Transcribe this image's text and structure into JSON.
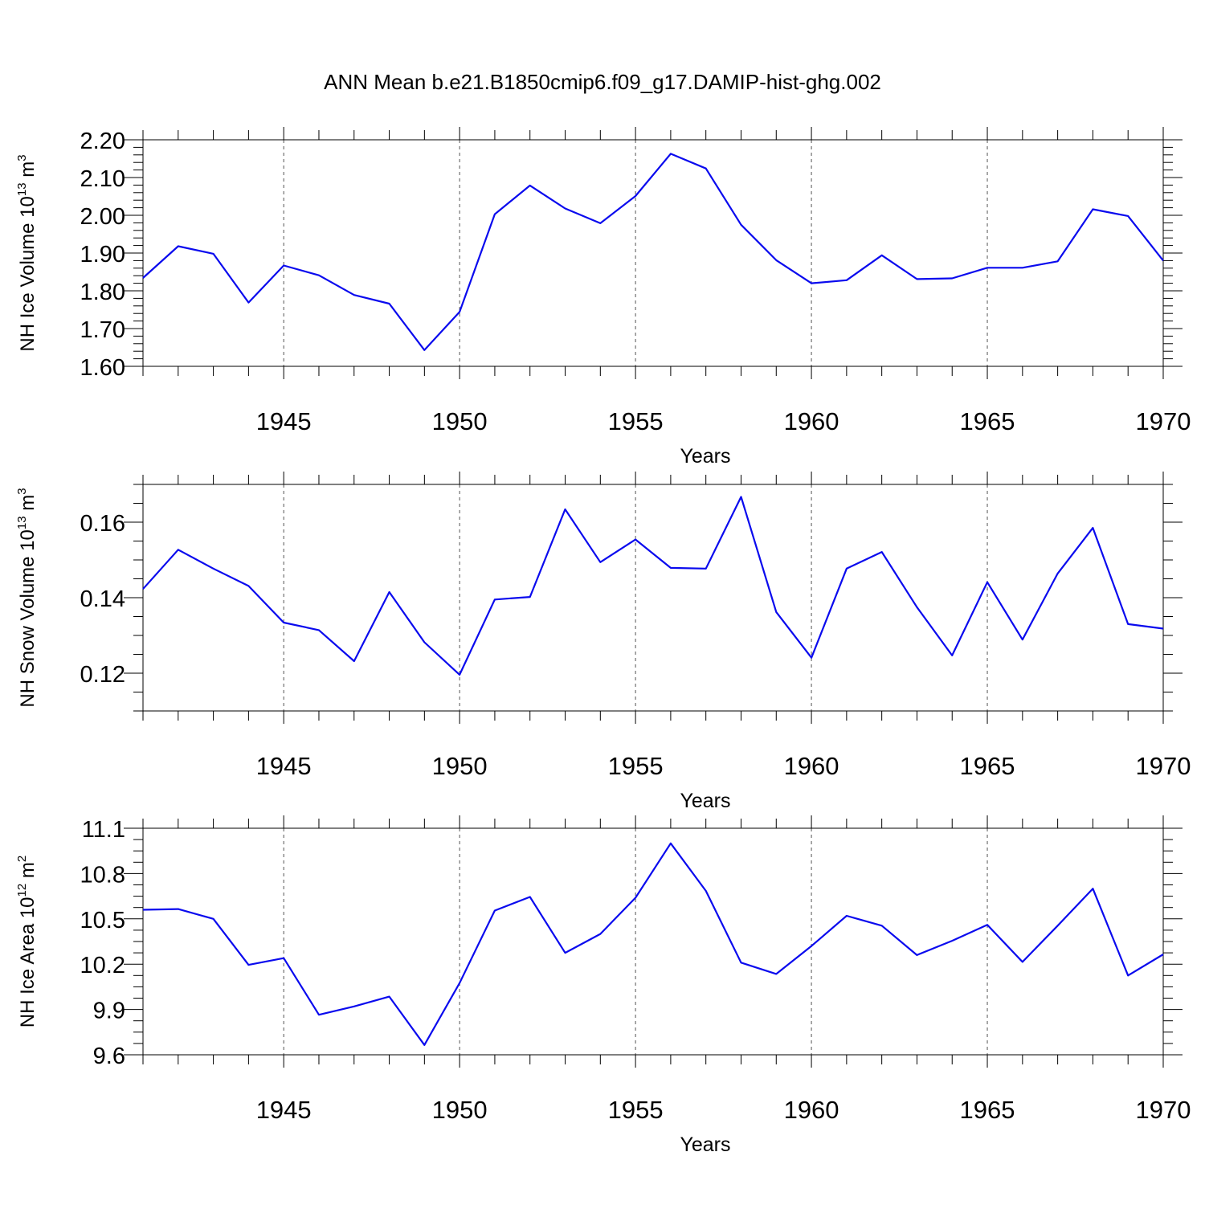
{
  "title": "ANN Mean b.e21.B1850cmip6.f09_g17.DAMIP-hist-ghg.002",
  "colors": {
    "line": "#0a0aee",
    "axis": "#000000",
    "grid": "#555555"
  },
  "chart_data": [
    {
      "type": "line",
      "ylabel": "NH Ice Volume 10",
      "ylabel_exp": "13",
      "ylabel_unit": " m",
      "ylabel_unit_exp": "3",
      "xlabel": "Years",
      "xlim": [
        1941,
        1970
      ],
      "ylim": [
        1.6,
        2.2
      ],
      "yticks": [
        1.6,
        1.7,
        1.8,
        1.9,
        2.0,
        2.1,
        2.2
      ],
      "ytick_labels": [
        "1.60",
        "1.70",
        "1.80",
        "1.90",
        "2.00",
        "2.10",
        "2.20"
      ],
      "yminor_step": 0.02,
      "xticks": [
        1945,
        1950,
        1955,
        1960,
        1965,
        1970
      ],
      "xtick_labels": [
        "1945",
        "1950",
        "1955",
        "1960",
        "1965",
        "1970"
      ],
      "grid_x": true,
      "x": [
        1941,
        1942,
        1943,
        1944,
        1945,
        1946,
        1947,
        1948,
        1949,
        1950,
        1951,
        1952,
        1953,
        1954,
        1955,
        1956,
        1957,
        1958,
        1959,
        1960,
        1961,
        1962,
        1963,
        1964,
        1965,
        1966,
        1967,
        1968,
        1969,
        1970
      ],
      "values": [
        1.834,
        1.918,
        1.898,
        1.769,
        1.867,
        1.841,
        1.789,
        1.766,
        1.643,
        1.744,
        2.003,
        2.079,
        2.018,
        1.979,
        2.051,
        2.163,
        2.124,
        1.975,
        1.881,
        1.82,
        1.828,
        1.894,
        1.831,
        1.833,
        1.861,
        1.861,
        1.878,
        2.016,
        1.998,
        1.88
      ]
    },
    {
      "type": "line",
      "ylabel": "NH Snow Volume 10",
      "ylabel_exp": "13",
      "ylabel_unit": " m",
      "ylabel_unit_exp": "3",
      "xlabel": "Years",
      "xlim": [
        1941,
        1970
      ],
      "ylim": [
        0.11,
        0.17
      ],
      "yticks": [
        0.12,
        0.14,
        0.16
      ],
      "ytick_labels": [
        "0.12",
        "0.14",
        "0.16"
      ],
      "yminor_step": 0.005,
      "xticks": [
        1945,
        1950,
        1955,
        1960,
        1965,
        1970
      ],
      "xtick_labels": [
        "1945",
        "1950",
        "1955",
        "1960",
        "1965",
        "1970"
      ],
      "grid_x": true,
      "x": [
        1941,
        1942,
        1943,
        1944,
        1945,
        1946,
        1947,
        1948,
        1949,
        1950,
        1951,
        1952,
        1953,
        1954,
        1955,
        1956,
        1957,
        1958,
        1959,
        1960,
        1961,
        1962,
        1963,
        1964,
        1965,
        1966,
        1967,
        1968,
        1969,
        1970
      ],
      "values": [
        0.1423,
        0.1527,
        0.1477,
        0.1431,
        0.1334,
        0.1314,
        0.1232,
        0.1415,
        0.1282,
        0.1196,
        0.1395,
        0.1402,
        0.1634,
        0.1494,
        0.1554,
        0.1479,
        0.1477,
        0.1667,
        0.1362,
        0.1241,
        0.1477,
        0.1521,
        0.1375,
        0.1247,
        0.1441,
        0.1289,
        0.1464,
        0.1585,
        0.133,
        0.1318
      ]
    },
    {
      "type": "line",
      "ylabel": "NH Ice Area 10",
      "ylabel_exp": "12",
      "ylabel_unit": " m",
      "ylabel_unit_exp": "2",
      "xlabel": "Years",
      "xlim": [
        1941,
        1970
      ],
      "ylim": [
        9.6,
        11.1
      ],
      "yticks": [
        9.6,
        9.9,
        10.2,
        10.5,
        10.8,
        11.1
      ],
      "ytick_labels": [
        "9.6",
        "9.9",
        "10.2",
        "10.5",
        "10.8",
        "11.1"
      ],
      "yminor_step": 0.075,
      "xticks": [
        1945,
        1950,
        1955,
        1960,
        1965,
        1970
      ],
      "xtick_labels": [
        "1945",
        "1950",
        "1955",
        "1960",
        "1965",
        "1970"
      ],
      "grid_x": true,
      "x": [
        1941,
        1942,
        1943,
        1944,
        1945,
        1946,
        1947,
        1948,
        1949,
        1950,
        1951,
        1952,
        1953,
        1954,
        1955,
        1956,
        1957,
        1958,
        1959,
        1960,
        1961,
        1962,
        1963,
        1964,
        1965,
        1966,
        1967,
        1968,
        1969,
        1970
      ],
      "values": [
        10.56,
        10.565,
        10.5,
        10.195,
        10.24,
        9.865,
        9.92,
        9.985,
        9.665,
        10.075,
        10.555,
        10.645,
        10.275,
        10.4,
        10.64,
        11.0,
        10.685,
        10.21,
        10.135,
        10.32,
        10.52,
        10.455,
        10.26,
        10.355,
        10.46,
        10.215,
        10.455,
        10.7,
        10.125,
        10.265
      ]
    }
  ]
}
